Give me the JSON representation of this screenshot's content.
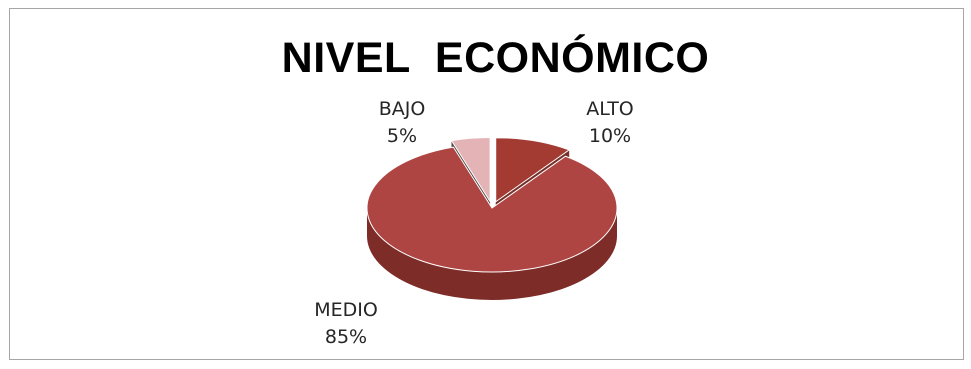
{
  "chart_data": {
    "type": "pie",
    "title": "NIVEL  ECONÓMICO",
    "three_d": true,
    "exploded": true,
    "slices": [
      {
        "label": "ALTO",
        "value": 10,
        "percent_text": "10%",
        "color": "#a33b33",
        "side_color": "#6e2520"
      },
      {
        "label": "MEDIO",
        "value": 85,
        "percent_text": "85%",
        "color": "#ae4542",
        "side_color": "#7d2c28"
      },
      {
        "label": "BAJO",
        "value": 5,
        "percent_text": "5%",
        "color": "#e3b3b6",
        "side_color": "#4a3a3a"
      }
    ]
  }
}
